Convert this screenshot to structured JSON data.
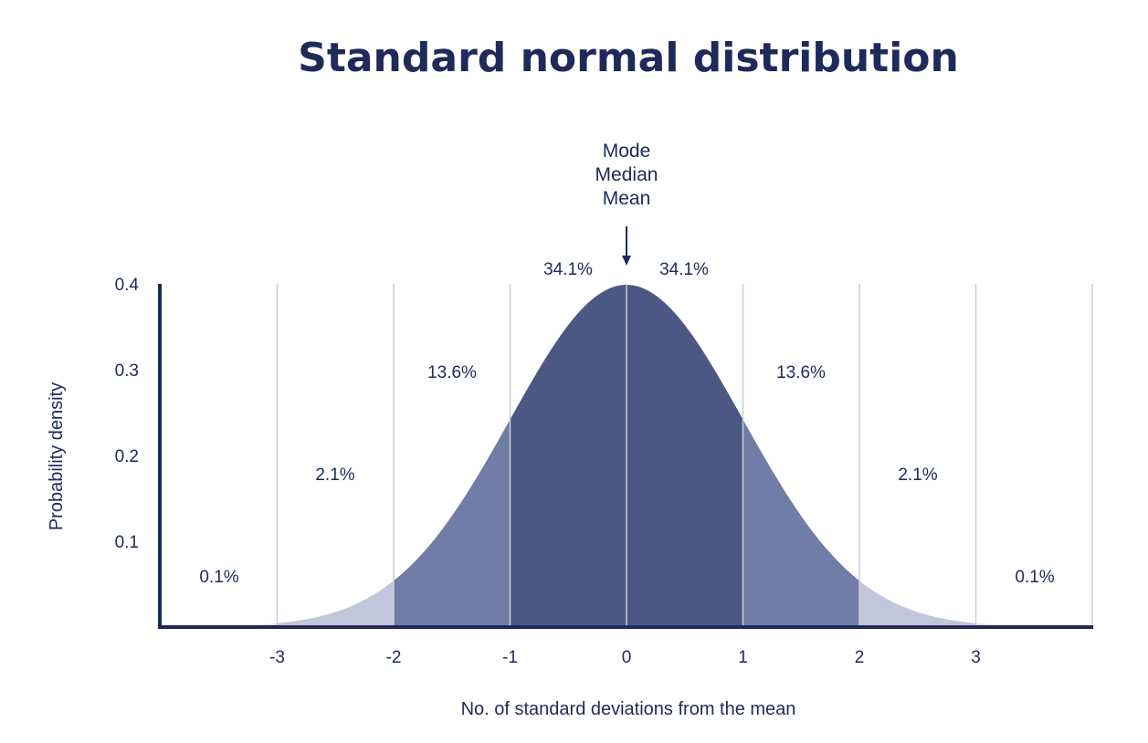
{
  "chart_data": {
    "type": "area",
    "title": "Standard normal distribution",
    "xlabel": "No. of standard deviations from the mean",
    "ylabel": "Probability density",
    "xlim": [
      -4,
      4
    ],
    "ylim": [
      0,
      0.4
    ],
    "x_ticks": [
      "-3",
      "-2",
      "-1",
      "0",
      "1",
      "2",
      "3"
    ],
    "y_ticks": [
      "0.1",
      "0.2",
      "0.3",
      "0.4"
    ],
    "grid": true,
    "regions": [
      {
        "from": -4,
        "to": -3,
        "percent": "0.1%",
        "color": "#e3e5ee"
      },
      {
        "from": -3,
        "to": -2,
        "percent": "2.1%",
        "color": "#c1c6da"
      },
      {
        "from": -2,
        "to": -1,
        "percent": "13.6%",
        "color": "#707da6"
      },
      {
        "from": -1,
        "to": 0,
        "percent": "34.1%",
        "color": "#4b5883"
      },
      {
        "from": 0,
        "to": 1,
        "percent": "34.1%",
        "color": "#4b5883"
      },
      {
        "from": 1,
        "to": 2,
        "percent": "13.6%",
        "color": "#707da6"
      },
      {
        "from": 2,
        "to": 3,
        "percent": "2.1%",
        "color": "#c1c6da"
      },
      {
        "from": 3,
        "to": 4,
        "percent": "0.1%",
        "color": "#e3e5ee"
      }
    ],
    "annotation": {
      "x": 0,
      "lines": [
        "Mode",
        "Median",
        "Mean"
      ]
    },
    "colors": {
      "text": "#1e2a5a",
      "axis": "#1e2a5a",
      "grid": "#c9cde0"
    }
  }
}
